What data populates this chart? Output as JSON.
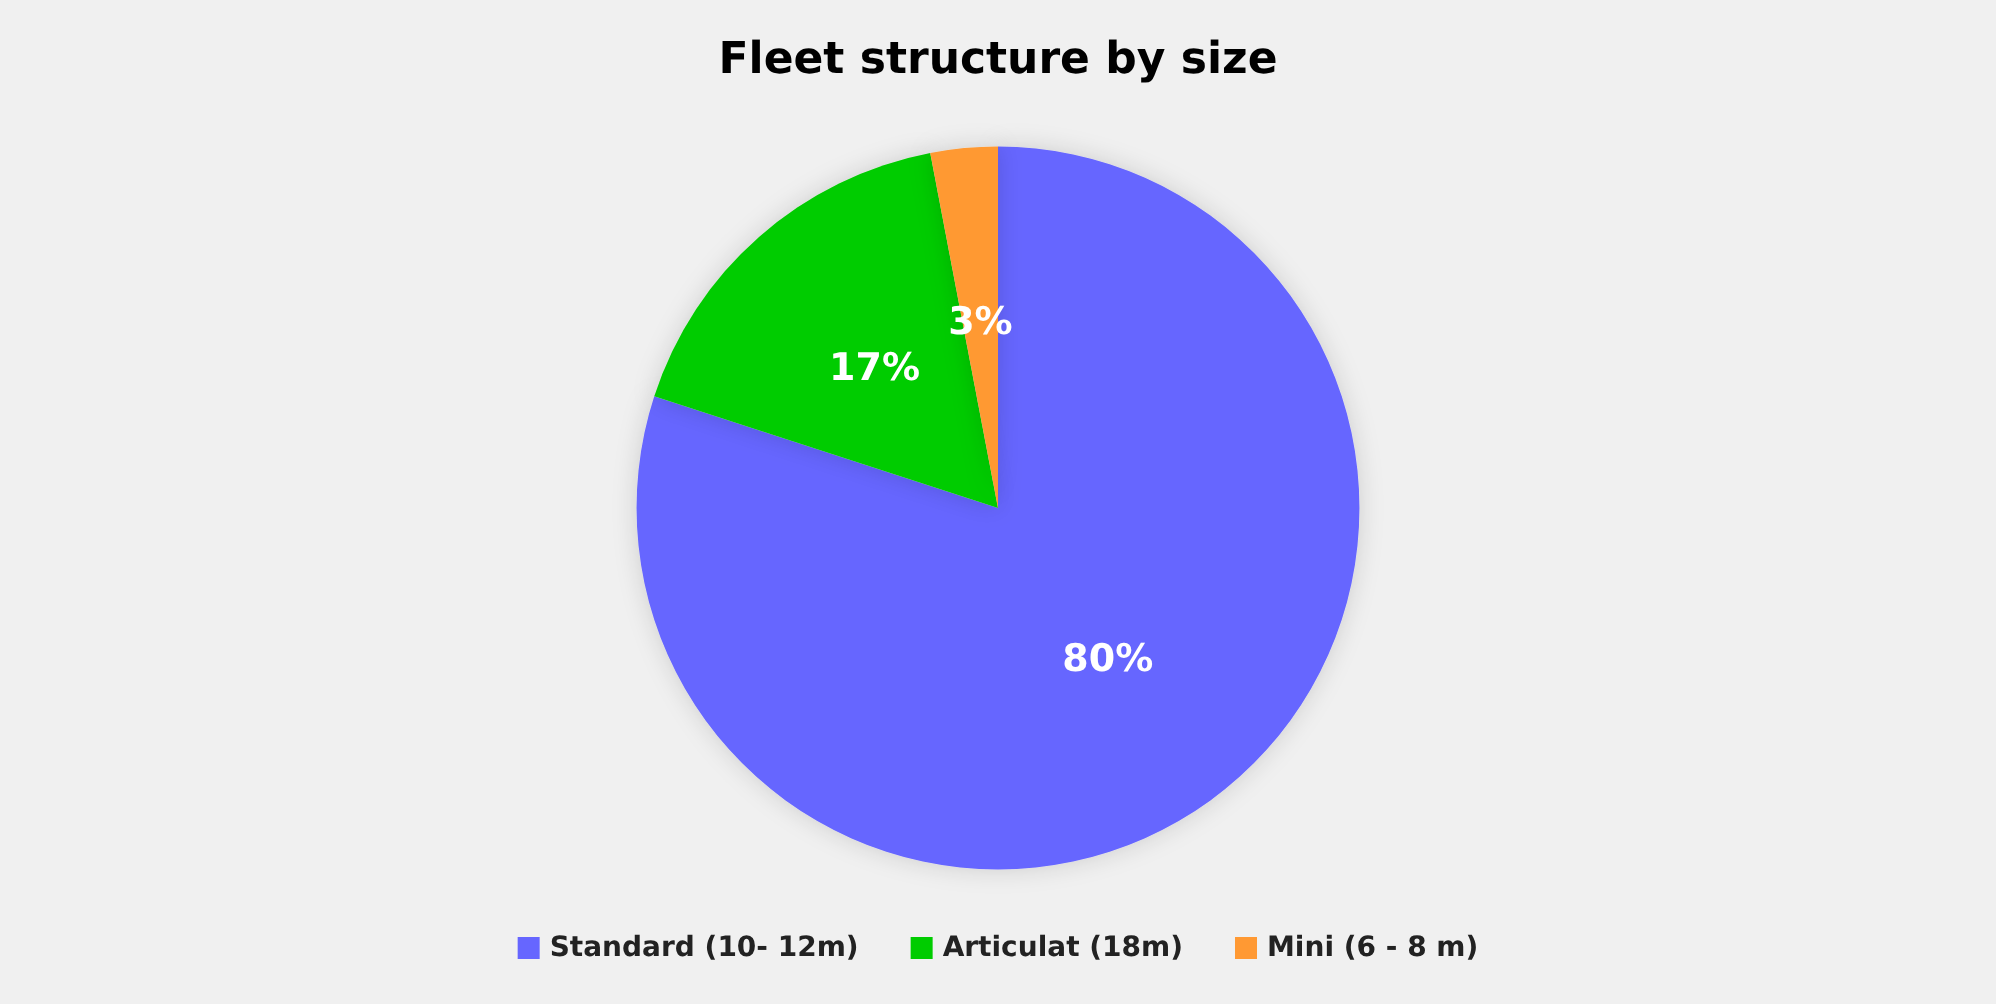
{
  "chart_data": {
    "type": "pie",
    "title": "Fleet structure by size",
    "categories": [
      "Standard (10- 12m)",
      "Articulat (18m)",
      "Mini (6 - 8 m)"
    ],
    "values": [
      80,
      17,
      3
    ],
    "colors": [
      "#6666ff",
      "#00cc00",
      "#ff9933"
    ],
    "value_labels": [
      "80%",
      "17%",
      "3%"
    ],
    "legend": "bottom"
  }
}
